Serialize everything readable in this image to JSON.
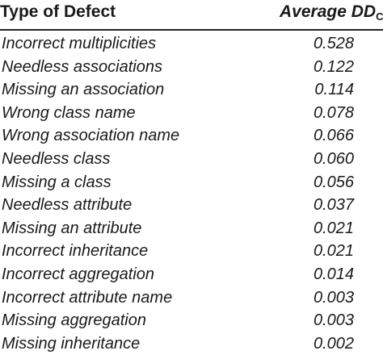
{
  "table": {
    "header": {
      "type_label": "Type of Defect",
      "avg_label_main": "Average DD",
      "avg_label_sub": "C"
    },
    "rows": [
      {
        "type": "Incorrect multiplicities",
        "value": "0.528"
      },
      {
        "type": "Needless associations",
        "value": "0.122"
      },
      {
        "type": "Missing an association",
        "value": "0.114"
      },
      {
        "type": "Wrong class name",
        "value": "0.078"
      },
      {
        "type": "Wrong association name",
        "value": "0.066"
      },
      {
        "type": "Needless class",
        "value": "0.060"
      },
      {
        "type": "Missing a class",
        "value": "0.056"
      },
      {
        "type": "Needless attribute",
        "value": "0.037"
      },
      {
        "type": "Missing an attribute",
        "value": "0.021"
      },
      {
        "type": "Incorrect inheritance",
        "value": "0.021"
      },
      {
        "type": "Incorrect aggregation",
        "value": "0.014"
      },
      {
        "type": "Incorrect attribute name",
        "value": "0.003"
      },
      {
        "type": "Missing aggregation",
        "value": "0.003"
      },
      {
        "type": "Missing inheritance",
        "value": "0.002"
      }
    ]
  }
}
